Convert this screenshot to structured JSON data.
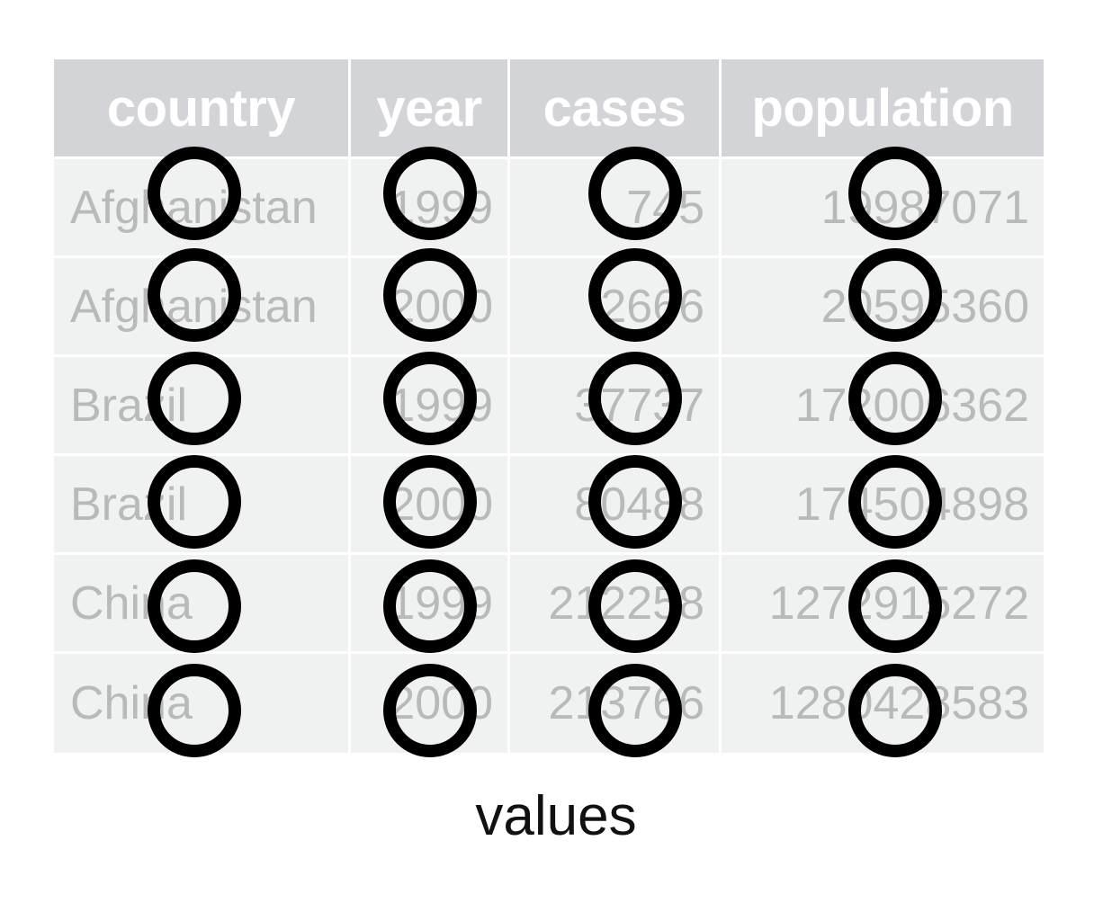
{
  "table": {
    "headers": [
      "country",
      "year",
      "cases",
      "population"
    ],
    "rows": [
      [
        "Afghanistan",
        "1999",
        "745",
        "19987071"
      ],
      [
        "Afghanistan",
        "2000",
        "2666",
        "20595360"
      ],
      [
        "Brazil",
        "1999",
        "37737",
        "172006362"
      ],
      [
        "Brazil",
        "2000",
        "80488",
        "174504898"
      ],
      [
        "China",
        "1999",
        "212258",
        "1272915272"
      ],
      [
        "China",
        "2000",
        "213766",
        "1280428583"
      ]
    ]
  },
  "markers": {
    "shape": "circle",
    "stroke_color": "#000000",
    "fill": "none",
    "count_per_column": 6
  },
  "caption": "values",
  "colors": {
    "header_bg": "#d3d4d8",
    "header_text": "#ffffff",
    "cell_bg": "#f0f1f1",
    "cell_text": "#b8b9b9"
  }
}
